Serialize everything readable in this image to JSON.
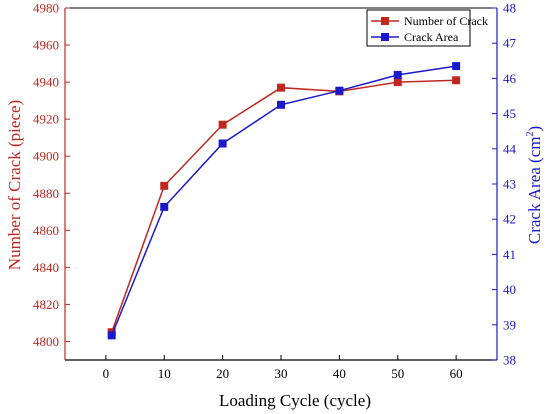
{
  "chart_data": {
    "type": "line",
    "x": [
      1,
      10,
      20,
      30,
      40,
      50,
      60
    ],
    "xticks": [
      0,
      10,
      20,
      30,
      40,
      50,
      60
    ],
    "xlim": [
      -7,
      67
    ],
    "xlabel": "Loading Cycle (cycle)",
    "y_left": {
      "label": "Number of Crack (piece)",
      "lim": [
        4790,
        4980
      ],
      "ticks": [
        4800,
        4820,
        4840,
        4860,
        4880,
        4900,
        4920,
        4940,
        4960,
        4980
      ],
      "color": "#c0281f"
    },
    "y_right": {
      "label_main": "Crack Area (cm",
      "label_sup": "2",
      "label_close": ")",
      "lim": [
        38,
        48
      ],
      "ticks": [
        38,
        39,
        40,
        41,
        42,
        43,
        44,
        45,
        46,
        47,
        48
      ],
      "color": "#1a1acc"
    },
    "series": [
      {
        "name": "Number of Crack",
        "axis": "left",
        "color": "#c0281f",
        "marker": "square",
        "values": [
          4805,
          4884,
          4917,
          4937,
          4935,
          4940,
          4941
        ]
      },
      {
        "name": "Crack Area",
        "axis": "right",
        "color": "#1a1acc",
        "marker": "square",
        "values": [
          38.7,
          42.35,
          44.15,
          45.25,
          45.65,
          46.1,
          46.35
        ]
      }
    ],
    "legend_position": "top-right",
    "grid": false
  }
}
